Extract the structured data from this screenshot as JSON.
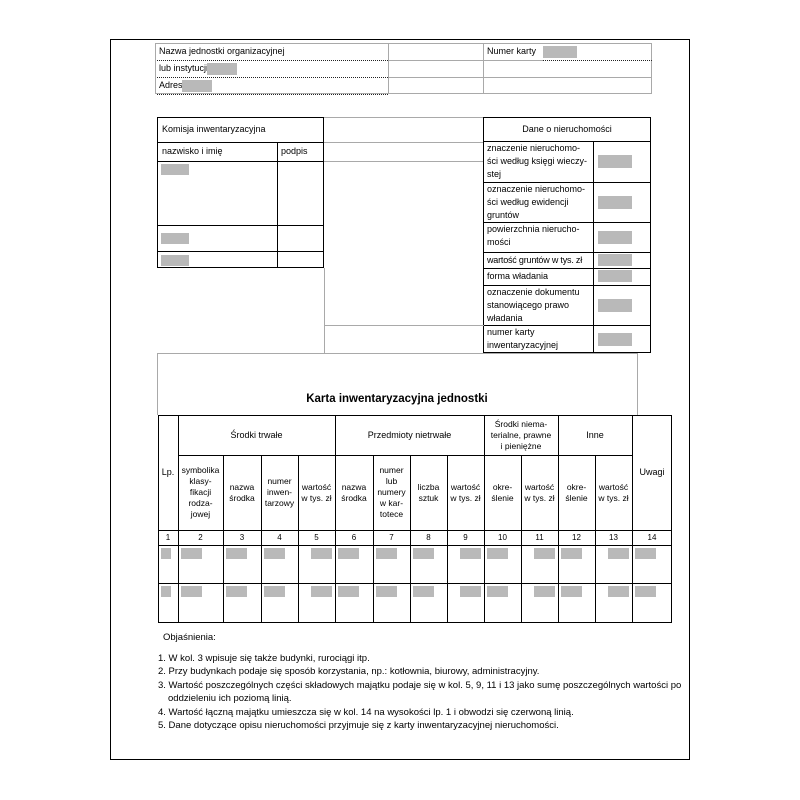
{
  "colors": {
    "placeholder_gray": "#b9b9b9",
    "grid_gray": "#a9a9a9",
    "grid_black": "#000000"
  },
  "header": {
    "nazwa_label": "Nazwa jednostki organizacyjnej",
    "numer_karty_label": "Numer karty",
    "lub_label": "lub instytucji",
    "adres_label": "Adres"
  },
  "komisja": {
    "title": "Komisja inwentaryzacyjna",
    "col_name": "nazwisko i imię",
    "col_signature": "podpis"
  },
  "dane": {
    "title": "Dane o nieruchomości",
    "rows": [
      "znaczenie  nieruchomo-\nści według księgi wieczy-\nstej",
      "oznaczenie nieruchomo-\nści według ewidencji\ngruntów",
      "powierzchnia nierucho-\nmości",
      "wartość gruntów w tys. zł",
      "forma władania",
      "oznaczenie dokumentu\nstanowiącego prawo\nwładania",
      "numer karty\ninwentaryzacyjnej"
    ]
  },
  "main_title": "Karta inwentaryzacyjna jednostki",
  "table": {
    "lp": "Lp.",
    "uwagi": "Uwagi",
    "groups": [
      "Środki trwałe",
      "Przedmioty nietrwałe",
      "Środki niema-\nterialne, prawne\ni pieniężne",
      "Inne"
    ],
    "sub_headers": [
      "symbolika\nklasy-\nfikacji\nrodza-\njowej",
      "nazwa\nśrodka",
      "numer\ninwen-\ntarzowy",
      "wartość\nw tys. zł",
      "nazwa\nśrodka",
      "numer\nlub\nnumery\nw kar-\ntotece",
      "liczba\nsztuk",
      "wartość\nw tys. zł",
      "okre-\nślenie",
      "wartość\nw tys. zł",
      "okre-\nślenie",
      "wartość\nw tys. zł"
    ],
    "col_numbers": [
      "1",
      "2",
      "3",
      "4",
      "5",
      "6",
      "7",
      "8",
      "9",
      "10",
      "11",
      "12",
      "13",
      "14"
    ]
  },
  "notes": {
    "title": "Objaśnienia:",
    "items": [
      "1. W kol. 3 wpisuje się także budynki, rurociągi itp.",
      "2. Przy budynkach podaje się sposób korzystania, np.: kotłownia, biurowy, administracyjny.",
      "3. Wartość poszczególnych części składowych majątku podaje się w kol. 5, 9, 11 i 13 jako sumę poszczególnych wartości po\noddzieleniu ich poziomą linią.",
      "4. Wartość łączną majątku umieszcza się w kol. 14 na wysokości lp. 1 i obwodzi się czerwoną linią.",
      "5. Dane dotyczące opisu nieruchomości przyjmuje się z karty inwentaryzacyjnej nieruchomości."
    ]
  }
}
